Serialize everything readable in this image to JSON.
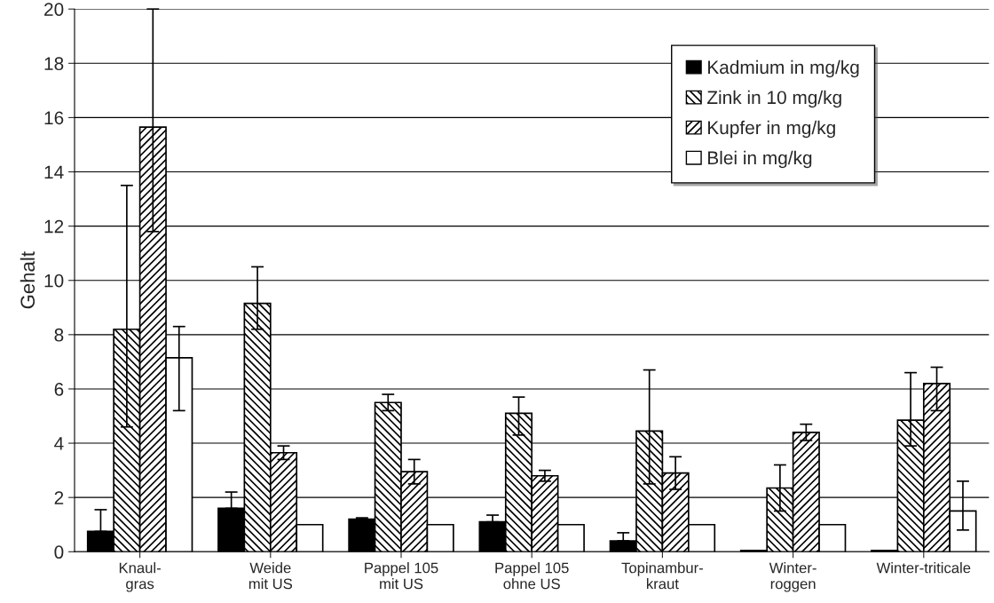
{
  "chart_data": {
    "type": "bar",
    "ylabel": "Gehalt",
    "categories": [
      "Knaul-\ngras",
      "Weide\nmit US",
      "Pappel 105\nmit US",
      "Pappel 105\nohne US",
      "Topinambur-\nkraut",
      "Winter-\nroggen",
      "Winter-triticale"
    ],
    "series": [
      {
        "name": "Kadmium in mg/kg",
        "color": "#000000",
        "values": [
          0.75,
          1.6,
          1.2,
          1.1,
          0.4,
          0.05,
          0.05
        ],
        "errors": [
          [
            0.75,
            1.55
          ],
          [
            1.6,
            2.2
          ],
          [
            1.2,
            1.25
          ],
          [
            1.1,
            1.35
          ],
          [
            0.4,
            0.7
          ],
          null,
          null
        ]
      },
      {
        "name": "Zink in 10 mg/kg",
        "color": "#000000",
        "values": [
          8.2,
          9.15,
          5.5,
          5.1,
          4.45,
          2.35,
          4.85
        ],
        "errors": [
          [
            4.6,
            13.5
          ],
          [
            8.2,
            10.5
          ],
          [
            5.2,
            5.8
          ],
          [
            4.3,
            5.7
          ],
          [
            2.5,
            6.7
          ],
          [
            1.5,
            3.2
          ],
          [
            3.9,
            6.6
          ]
        ]
      },
      {
        "name": "Kupfer in mg/kg",
        "color": "#000000",
        "values": [
          15.65,
          3.65,
          2.95,
          2.8,
          2.9,
          4.4,
          6.2
        ],
        "errors": [
          [
            11.8,
            20
          ],
          [
            3.4,
            3.9
          ],
          [
            2.5,
            3.4
          ],
          [
            2.6,
            3.0
          ],
          [
            2.3,
            3.5
          ],
          [
            4.1,
            4.7
          ],
          [
            5.2,
            6.8
          ]
        ]
      },
      {
        "name": "Blei in mg/kg",
        "color": "#ffffff",
        "values": [
          7.15,
          1.0,
          1.0,
          1.0,
          1.0,
          1.0,
          1.5
        ],
        "errors": [
          [
            5.2,
            8.3
          ],
          null,
          null,
          null,
          null,
          null,
          [
            0.8,
            2.6
          ]
        ]
      }
    ],
    "ylim": [
      0,
      20
    ],
    "yticks": [
      0,
      2,
      4,
      6,
      8,
      10,
      12,
      14,
      16,
      18,
      20
    ],
    "grid": "y",
    "legend": "top right"
  }
}
